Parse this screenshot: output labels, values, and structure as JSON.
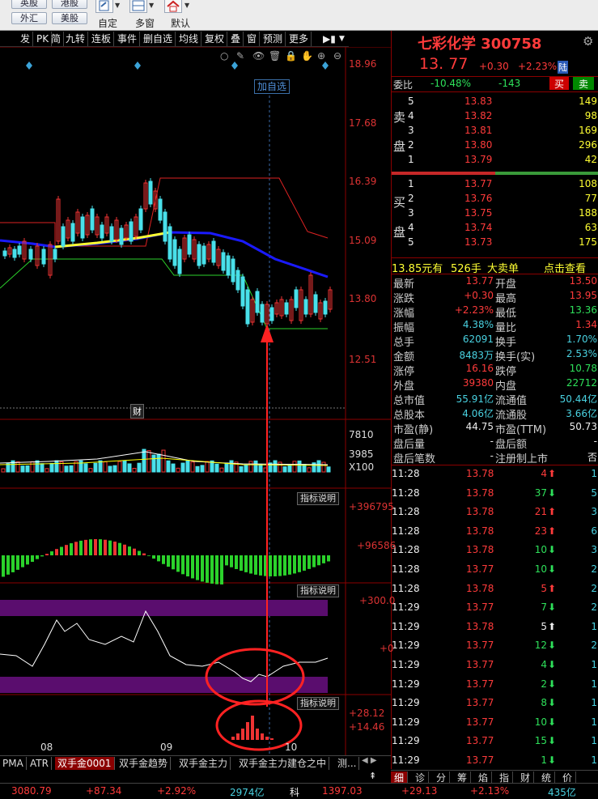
{
  "toolbar": {
    "btn1": "英股",
    "btn2": "港股",
    "btn3": "外汇",
    "btn4": "美股",
    "lbl_zd": "自定",
    "lbl_dc": "多窗",
    "lbl_mr": "默认"
  },
  "chart_toolbar": [
    "发",
    "PK",
    "简",
    "九转",
    "连板",
    "事件",
    "删自选",
    "均线",
    "复权",
    "叠",
    "窗",
    "预测",
    "更多"
  ],
  "price_axis": [
    "18.96",
    "17.68",
    "16.39",
    "15.09",
    "13.80",
    "12.51"
  ],
  "add_fav": "加自选",
  "cai_label": "财",
  "vol_axis": [
    "7810",
    "3985",
    "X100"
  ],
  "ind_btn": "指标说明",
  "ind1_axis": [
    "+396795",
    "+96586"
  ],
  "ind2_axis": [
    "+300.0",
    "+0"
  ],
  "ind3_axis": [
    "+28.12",
    "+14.46"
  ],
  "date_axis": [
    "08",
    "09",
    "10"
  ],
  "bottom_tabs": [
    "PMA",
    "ATR",
    "双手金0001",
    "双手金趋势",
    "双手金主力",
    "双手金主力建仓之中",
    "测..."
  ],
  "right": {
    "title": "七彩化学 300758",
    "price": "13. 77",
    "change": "+0.30",
    "pct": "+2.23%",
    "tag": "陆",
    "wb_label": "委比",
    "wb_pct": "-10.48%",
    "wb_num": "-143",
    "buy_btn": "买",
    "sell_btn": "卖",
    "sell_label": [
      "卖",
      "盘"
    ],
    "buy_label": [
      "买",
      "盘"
    ],
    "sells": [
      {
        "n": "5",
        "p": "13.83",
        "v": "149"
      },
      {
        "n": "4",
        "p": "13.82",
        "v": "98"
      },
      {
        "n": "3",
        "p": "13.81",
        "v": "169"
      },
      {
        "n": "2",
        "p": "13.80",
        "v": "296"
      },
      {
        "n": "1",
        "p": "13.79",
        "v": "42"
      }
    ],
    "buys": [
      {
        "n": "1",
        "p": "13.77",
        "v": "108"
      },
      {
        "n": "2",
        "p": "13.76",
        "v": "77"
      },
      {
        "n": "3",
        "p": "13.75",
        "v": "188"
      },
      {
        "n": "4",
        "p": "13.74",
        "v": "63"
      },
      {
        "n": "5",
        "p": "13.73",
        "v": "175"
      }
    ],
    "big_order": {
      "a": "13.85元有",
      "b": "526手",
      "c": "大卖单",
      "d": "点击查看"
    },
    "stats": [
      {
        "l": "最新",
        "v": "13.77",
        "c": "red",
        "l2": "开盘",
        "v2": "13.50",
        "c2": "red"
      },
      {
        "l": "涨跌",
        "v": "+0.30",
        "c": "red",
        "l2": "最高",
        "v2": "13.95",
        "c2": "red"
      },
      {
        "l": "涨幅",
        "v": "+2.23%",
        "c": "red",
        "l2": "最低",
        "v2": "13.36",
        "c2": "grn"
      },
      {
        "l": "振幅",
        "v": "4.38%",
        "c": "cyn",
        "l2": "量比",
        "v2": "1.34",
        "c2": "red"
      },
      {
        "l": "总手",
        "v": "62091",
        "c": "cyn",
        "l2": "换手",
        "v2": "1.70%",
        "c2": "cyn"
      },
      {
        "l": "金额",
        "v": "8483万",
        "c": "cyn",
        "l2": "换手(实)",
        "v2": "2.53%",
        "c2": "cyn"
      },
      {
        "l": "涨停",
        "v": "16.16",
        "c": "red",
        "l2": "跌停",
        "v2": "10.78",
        "c2": "grn"
      },
      {
        "l": "外盘",
        "v": "39380",
        "c": "red",
        "l2": "内盘",
        "v2": "22712",
        "c2": "grn"
      },
      {
        "l": "总市值",
        "v": "55.91亿",
        "c": "cyn",
        "l2": "流通值",
        "v2": "50.44亿",
        "c2": "cyn"
      },
      {
        "l": "总股本",
        "v": "4.06亿",
        "c": "cyn",
        "l2": "流通股",
        "v2": "3.66亿",
        "c2": "cyn"
      },
      {
        "l": "市盈(静)",
        "v": "44.75",
        "c": "wht",
        "l2": "市盈(TTM)",
        "v2": "50.73",
        "c2": "wht"
      },
      {
        "l": "盘后量",
        "v": "-",
        "c": "wht",
        "l2": "盘后额",
        "v2": "-",
        "c2": "wht"
      },
      {
        "l": "盘后笔数",
        "v": "-",
        "c": "wht",
        "l2": "注册制上市",
        "v2": "否",
        "c2": "wht"
      }
    ],
    "ticks": [
      {
        "t": "11:28",
        "p": "13.78",
        "pc": "red",
        "v": "4",
        "d": "up",
        "n": "1"
      },
      {
        "t": "11:28",
        "p": "13.78",
        "pc": "red",
        "v": "37",
        "d": "dn",
        "n": "5"
      },
      {
        "t": "11:28",
        "p": "13.78",
        "pc": "red",
        "v": "21",
        "d": "up",
        "n": "3"
      },
      {
        "t": "11:28",
        "p": "13.78",
        "pc": "red",
        "v": "23",
        "d": "up",
        "n": "6"
      },
      {
        "t": "11:28",
        "p": "13.78",
        "pc": "red",
        "v": "10",
        "d": "dn",
        "n": "3"
      },
      {
        "t": "11:28",
        "p": "13.77",
        "pc": "red",
        "v": "10",
        "d": "dn",
        "n": "2"
      },
      {
        "t": "11:28",
        "p": "13.78",
        "pc": "red",
        "v": "5",
        "d": "up",
        "n": "2"
      },
      {
        "t": "11:29",
        "p": "13.77",
        "pc": "red",
        "v": "7",
        "d": "dn",
        "n": "2"
      },
      {
        "t": "11:29",
        "p": "13.78",
        "pc": "red",
        "v": "5",
        "d": "wt",
        "n": "1"
      },
      {
        "t": "11:29",
        "p": "13.77",
        "pc": "red",
        "v": "12",
        "d": "dn",
        "n": "2"
      },
      {
        "t": "11:29",
        "p": "13.77",
        "pc": "red",
        "v": "4",
        "d": "dn",
        "n": "1"
      },
      {
        "t": "11:29",
        "p": "13.77",
        "pc": "red",
        "v": "2",
        "d": "dn",
        "n": "1"
      },
      {
        "t": "11:29",
        "p": "13.77",
        "pc": "red",
        "v": "8",
        "d": "dn",
        "n": "1"
      },
      {
        "t": "11:29",
        "p": "13.77",
        "pc": "red",
        "v": "10",
        "d": "dn",
        "n": "1"
      },
      {
        "t": "11:29",
        "p": "13.77",
        "pc": "red",
        "v": "15",
        "d": "dn",
        "n": "1"
      },
      {
        "t": "11:29",
        "p": "13.77",
        "pc": "red",
        "v": "1",
        "d": "dn",
        "n": "1"
      }
    ],
    "tabs": [
      "细",
      "诊",
      "分",
      "筹",
      "焰",
      "指",
      "财",
      "统",
      "价"
    ]
  },
  "status": {
    "idx1": "3080.79",
    "idx1_ch": "+87.34",
    "idx1_pct": "+2.92%",
    "idx1_amt": "2974亿",
    "idx2_name": "科",
    "idx2": "1397.03",
    "idx2_ch": "+29.13",
    "idx2_pct": "+2.13%",
    "idx2_amt": "435亿"
  },
  "colors": {
    "up": "#ff3b3b",
    "down": "#2ee05a",
    "ma_blue": "#1a1aff",
    "ma_yellow": "#ffff33",
    "purple": "#5a0d6e"
  }
}
